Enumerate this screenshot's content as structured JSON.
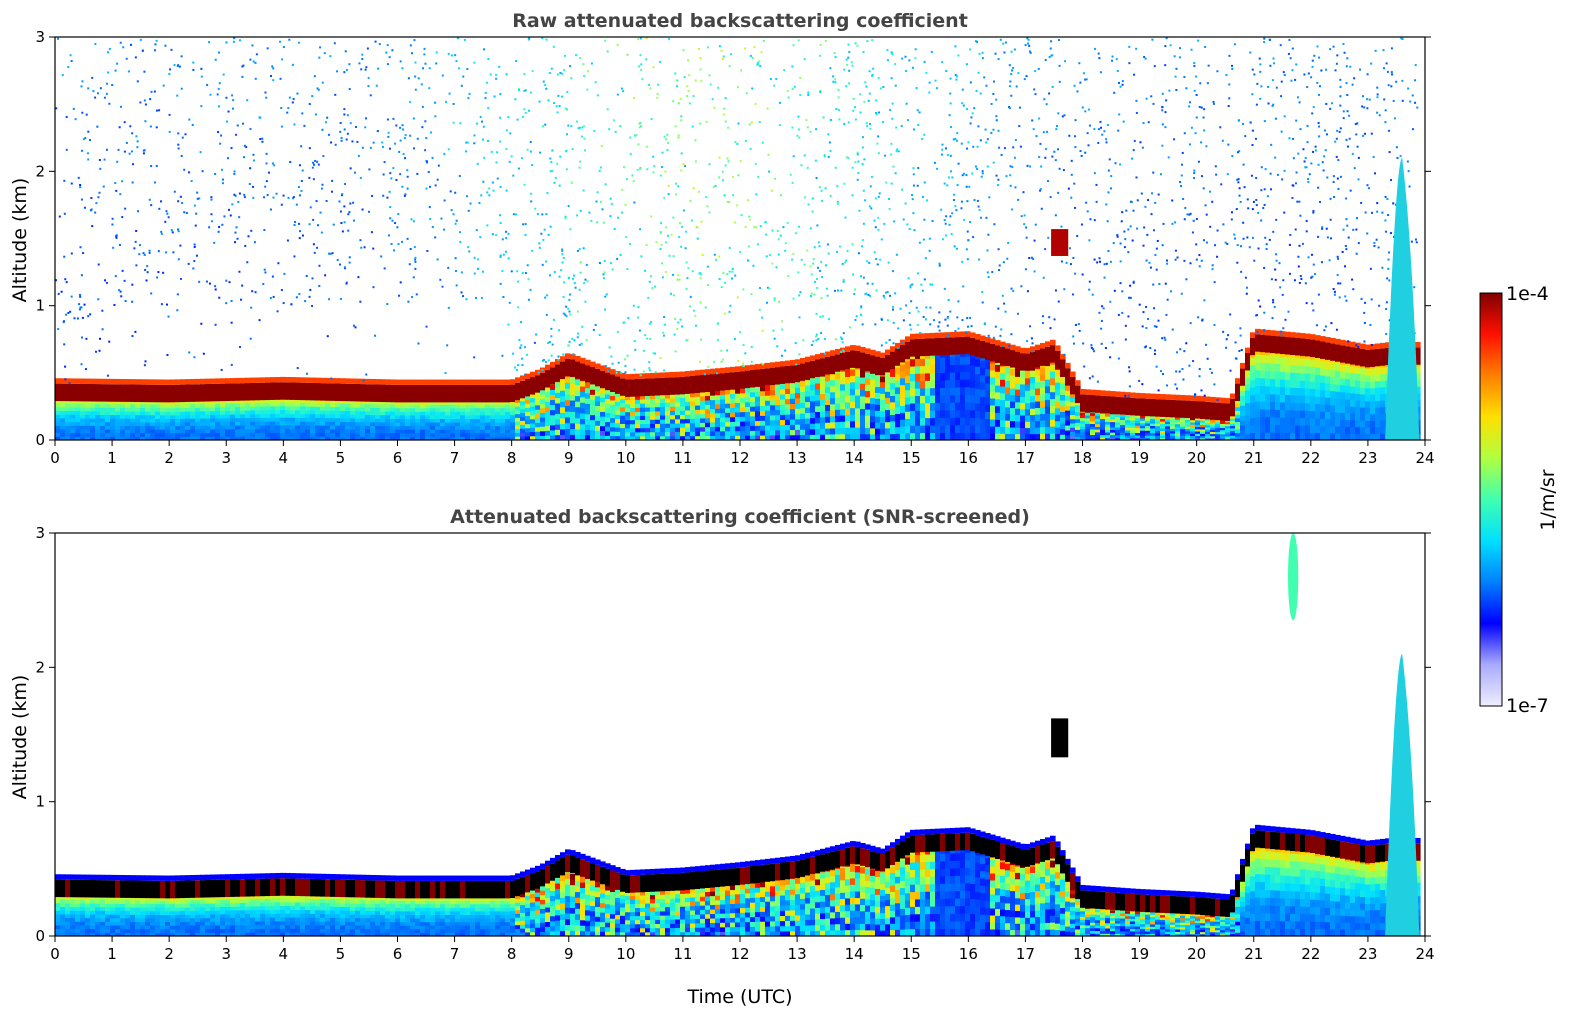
{
  "figure": {
    "colorbar": {
      "max_label": "1e-4",
      "min_label": "1e-7",
      "unit_label": "1/m/sr",
      "scale": "log",
      "colormap": "jet (white at low end)",
      "colors": [
        "#eeeeff",
        "#aaaaff",
        "#0000ff",
        "#0080ff",
        "#00e0ff",
        "#40ffb0",
        "#b0ff40",
        "#ffe000",
        "#ff8000",
        "#ff1000",
        "#800000"
      ]
    }
  },
  "chart_data": [
    {
      "type": "heatmap",
      "title": "Raw attenuated backscattering coefficient",
      "xlabel": "",
      "ylabel": "Altitude (km)",
      "xlim": [
        0,
        24
      ],
      "ylim": [
        0,
        3
      ],
      "x_ticks": [
        "0",
        "1",
        "2",
        "3",
        "4",
        "5",
        "6",
        "7",
        "8",
        "9",
        "10",
        "11",
        "12",
        "13",
        "14",
        "15",
        "16",
        "17",
        "18",
        "19",
        "20",
        "21",
        "22",
        "23",
        "24"
      ],
      "y_ticks": [
        "0",
        "1",
        "2",
        "3"
      ],
      "boundary_layer_top_km": {
        "x": [
          0,
          2,
          4,
          6,
          8,
          8.5,
          9,
          10,
          11,
          12,
          13,
          14,
          14.5,
          15,
          16,
          17,
          17.5,
          18,
          19,
          20,
          20.6,
          21,
          22,
          23,
          23.4
        ],
        "y": [
          0.33,
          0.32,
          0.34,
          0.32,
          0.32,
          0.4,
          0.52,
          0.36,
          0.38,
          0.42,
          0.47,
          0.58,
          0.52,
          0.66,
          0.68,
          0.55,
          0.62,
          0.25,
          0.22,
          0.2,
          0.18,
          0.7,
          0.66,
          0.58,
          0.6
        ]
      },
      "features": [
        {
          "label": "elevated cloud layer",
          "x": [
            17.45,
            17.75
          ],
          "y": [
            1.37,
            1.57
          ]
        },
        {
          "label": "noise increasing with solar background",
          "x": [
            8,
            14
          ],
          "y": [
            1,
            3
          ]
        },
        {
          "label": "precipitation streak",
          "x": [
            23.3,
            23.9
          ],
          "y": [
            0,
            2.1
          ]
        }
      ],
      "grid": false
    },
    {
      "type": "heatmap",
      "title": "Attenuated backscattering coefficient (SNR-screened)",
      "xlabel": "Time (UTC)",
      "ylabel": "Altitude (km)",
      "xlim": [
        0,
        24
      ],
      "ylim": [
        0,
        3
      ],
      "x_ticks": [
        "0",
        "1",
        "2",
        "3",
        "4",
        "5",
        "6",
        "7",
        "8",
        "9",
        "10",
        "11",
        "12",
        "13",
        "14",
        "15",
        "16",
        "17",
        "18",
        "19",
        "20",
        "21",
        "22",
        "23",
        "24"
      ],
      "y_ticks": [
        "0",
        "1",
        "2",
        "3"
      ],
      "boundary_layer_top_km": {
        "x": [
          0,
          2,
          4,
          6,
          8,
          8.5,
          9,
          10,
          11,
          12,
          13,
          14,
          14.5,
          15,
          16,
          17,
          17.5,
          18,
          19,
          20,
          20.6,
          21,
          22,
          23,
          23.4
        ],
        "y": [
          0.33,
          0.32,
          0.34,
          0.32,
          0.32,
          0.4,
          0.52,
          0.36,
          0.38,
          0.42,
          0.47,
          0.58,
          0.52,
          0.66,
          0.68,
          0.55,
          0.62,
          0.25,
          0.22,
          0.2,
          0.18,
          0.7,
          0.66,
          0.58,
          0.6
        ]
      },
      "features": [
        {
          "label": "elevated cloud layer",
          "x": [
            17.45,
            17.75
          ],
          "y": [
            1.33,
            1.62
          ]
        },
        {
          "label": "cirrus streak",
          "x": [
            21.6,
            21.78
          ],
          "y": [
            2.35,
            3.0
          ]
        },
        {
          "label": "precipitation streak",
          "x": [
            23.3,
            23.9
          ],
          "y": [
            0,
            2.1
          ]
        }
      ],
      "grid": false
    }
  ]
}
